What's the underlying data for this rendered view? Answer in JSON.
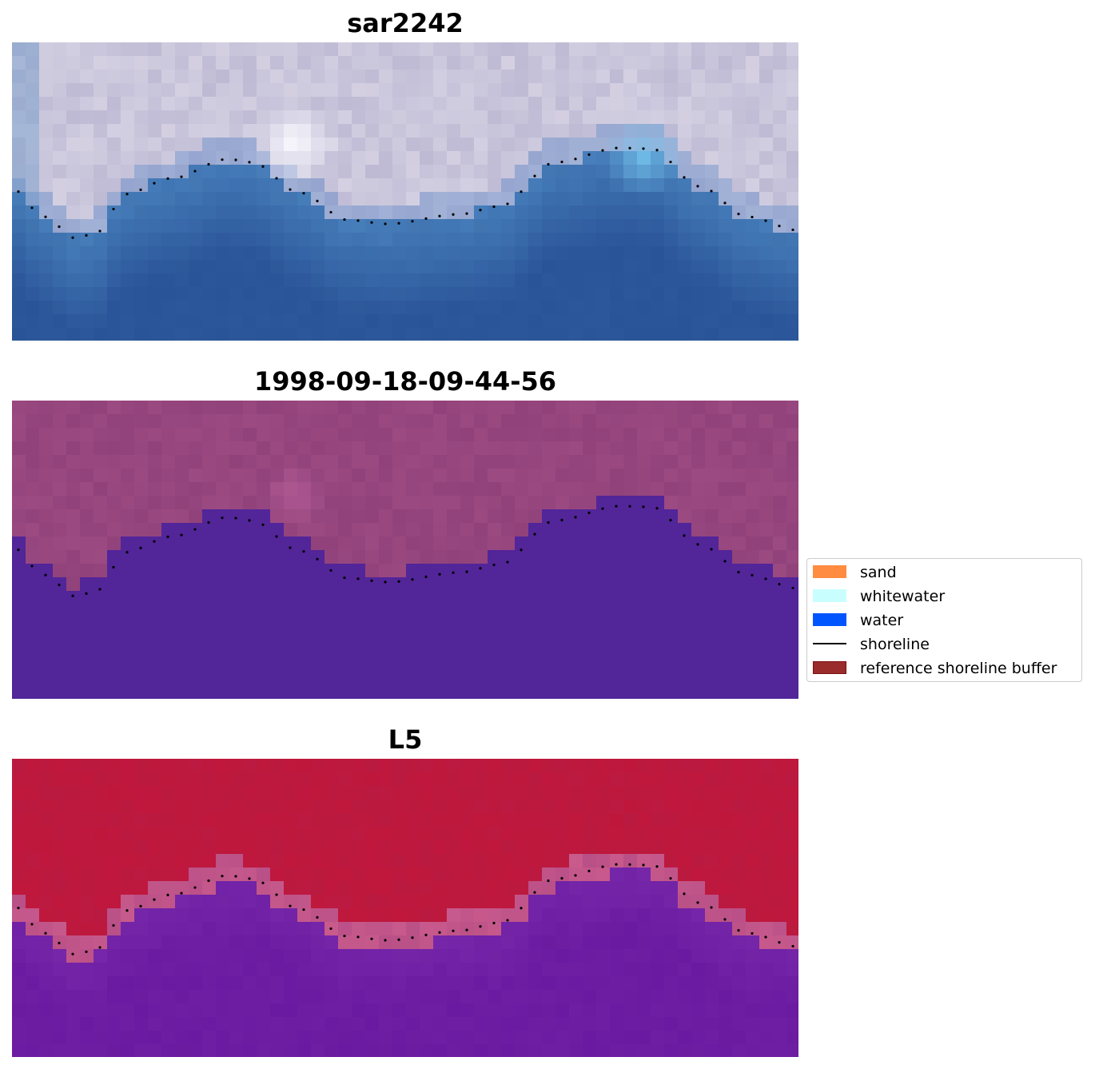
{
  "panels": [
    {
      "title": "sar2242",
      "kind": "rgb"
    },
    {
      "title": "1998-09-18-09-44-56",
      "kind": "classified"
    },
    {
      "title": "L5",
      "kind": "probability"
    }
  ],
  "legend": {
    "items": [
      {
        "label": "sand",
        "color": "#ff8c40",
        "kind": "patch"
      },
      {
        "label": "whitewater",
        "color": "#c8fffe",
        "kind": "patch"
      },
      {
        "label": "water",
        "color": "#0055ff",
        "kind": "patch"
      },
      {
        "label": "shoreline",
        "color": "#000000",
        "kind": "line"
      },
      {
        "label": "reference shoreline buffer",
        "color": "#9b2c2c",
        "kind": "patch"
      }
    ]
  },
  "colors": {
    "water_deep": "#2b5799",
    "water_shallow": "#4a82bd",
    "land_lilac": "#bdb8d4",
    "classified_water": "#522599",
    "classified_land": "#9c4a82",
    "prob_land": "#c0173c",
    "prob_water": "#6a1aa0",
    "shoreline_dots": "#000000"
  }
}
